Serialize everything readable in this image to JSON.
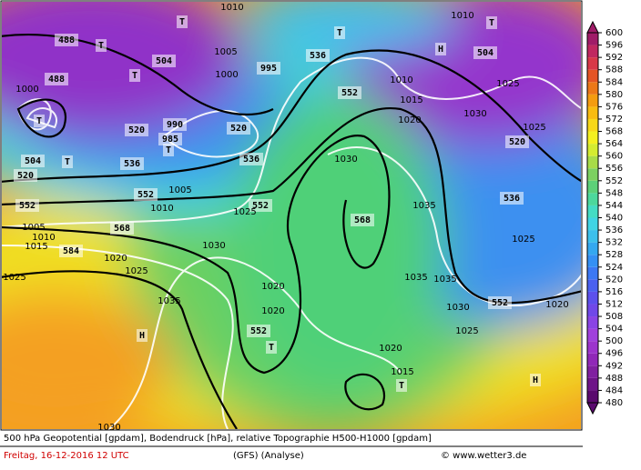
{
  "footer": {
    "line1": "500 hPa Geopotential [gpdam], Bodendruck [hPa], relative Topographie H500-H1000 [gpdam]",
    "date": "Freitag, 16-12-2016  12 UTC",
    "model": "(GFS)  (Analyse)",
    "credit": "© www.wetter3.de"
  },
  "colorbar": {
    "ticks": [
      480,
      484,
      488,
      492,
      496,
      500,
      504,
      508,
      512,
      516,
      520,
      524,
      528,
      532,
      536,
      540,
      544,
      548,
      552,
      556,
      560,
      564,
      568,
      572,
      576,
      580,
      584,
      588,
      592,
      596,
      600
    ],
    "colors": [
      "#5a0a6e",
      "#6e1488",
      "#8020a0",
      "#9028b8",
      "#9c34cc",
      "#a040dc",
      "#8a44e4",
      "#7048e8",
      "#5c50ec",
      "#4a60f0",
      "#3c78f4",
      "#3490f4",
      "#34a8f0",
      "#3cc0ec",
      "#40d4e4",
      "#44dcc4",
      "#4cd89c",
      "#5cd078",
      "#7cd060",
      "#a8dc48",
      "#d4ec30",
      "#f4f020",
      "#f8d818",
      "#f8bc10",
      "#f49c10",
      "#ec7818",
      "#e45424",
      "#d83848",
      "#c02860",
      "#a01c68"
    ]
  },
  "map_labels": [
    "488",
    "488",
    "504",
    "504",
    "520",
    "520",
    "520",
    "520",
    "536",
    "536",
    "536",
    "536",
    "552",
    "552",
    "552",
    "552",
    "552",
    "552",
    "568",
    "568",
    "584",
    "504",
    "T",
    "T",
    "T",
    "T",
    "T",
    "T",
    "T",
    "T",
    "T",
    "T",
    "H",
    "H",
    "H",
    "1010",
    "1005",
    "1000",
    "995",
    "990",
    "985",
    "1005",
    "1010",
    "1025",
    "1030",
    "1020",
    "1025",
    "1035",
    "1020",
    "1020",
    "1030",
    "1035",
    "1035",
    "1035",
    "1020",
    "1015",
    "1010",
    "1015",
    "1020",
    "1030",
    "1025",
    "1025",
    "1025",
    "1020",
    "1030",
    "1025",
    "1030",
    "1000",
    "1005",
    "1010",
    "1015",
    "1025",
    "1010"
  ]
}
